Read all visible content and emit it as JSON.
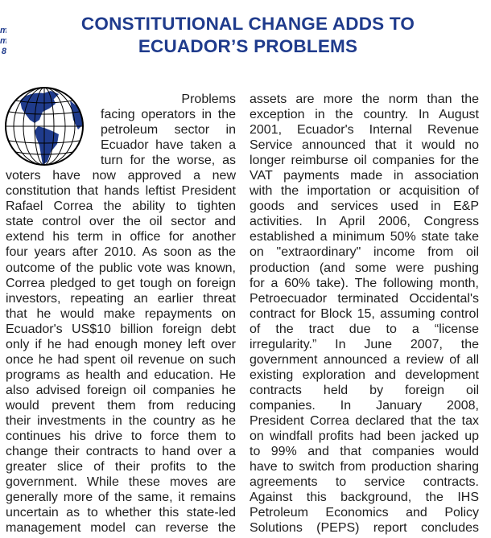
{
  "header": {
    "edge_fragments": [
      "m",
      "m",
      "8"
    ],
    "title_lines": [
      "CONSTITUTIONAL CHANGE ADDS TO",
      "ECUADOR’S PROBLEMS"
    ]
  },
  "colors": {
    "title": "#1f3b8c",
    "body": "#1e1e1e",
    "globe_land": "#1f3b8c"
  },
  "image": {
    "icon": "globe-icon"
  },
  "article": {
    "left_column": [
      "Problems",
      "facing operators in the",
      "petroleum sector in",
      "Ecuador have taken a",
      "turn for the worse, as",
      "voters have now approved a new",
      "constitution that hands leftist President",
      "Rafael Correa the ability to tighten",
      "state control over the oil sector and",
      "extend his term in office for another",
      "four years after 2010. As soon as the",
      "outcome of the public vote was known,",
      "Correa pledged to get tough on foreign",
      "investors, repeating an earlier threat",
      "that he would make repayments on",
      "Ecuador's US$10 billion foreign debt",
      "only if he had enough money left over",
      "once he had spent oil revenue on such",
      "programs as health and education. He",
      "also advised foreign oil companies he",
      "would prevent them from reducing",
      "their investments in the country as he",
      "continues his drive to force them to",
      "change their contracts to hand over a",
      "greater slice of their profits to the",
      "government. While these moves are",
      "generally more of the same, it remains",
      "uncertain as to whether this state-led",
      "management model can reverse the"
    ],
    "right_column": [
      "assets are more the norm than the",
      "exception in the country. In August",
      "2001, Ecuador's Internal Revenue",
      "Service announced that it would no",
      "longer reimburse oil companies for the",
      "VAT payments made in association",
      "with the importation or acquisition of",
      "goods and services used in E&P",
      "activities. In April 2006, Congress",
      "established a minimum 50% state take",
      "on \"extraordinary\" income from oil",
      "production (and some were pushing",
      "for a 60% take). The following month,",
      "Petroecuador terminated Occidental's",
      "contract for Block 15, assuming control",
      "of the tract due to a “license",
      "irregularity.” In June 2007, the",
      "government announced a review of all",
      "existing exploration and development",
      "contracts held by foreign oil",
      "companies. In January 2008,",
      "President Correa declared that the tax",
      "on windfall profits had been jacked up",
      "to 99% and that companies would",
      "have to switch from production sharing",
      "agreements to service contracts.",
      "Against this background, the IHS",
      "Petroleum Economics and Policy",
      "Solutions (PEPS) report concludes"
    ]
  }
}
